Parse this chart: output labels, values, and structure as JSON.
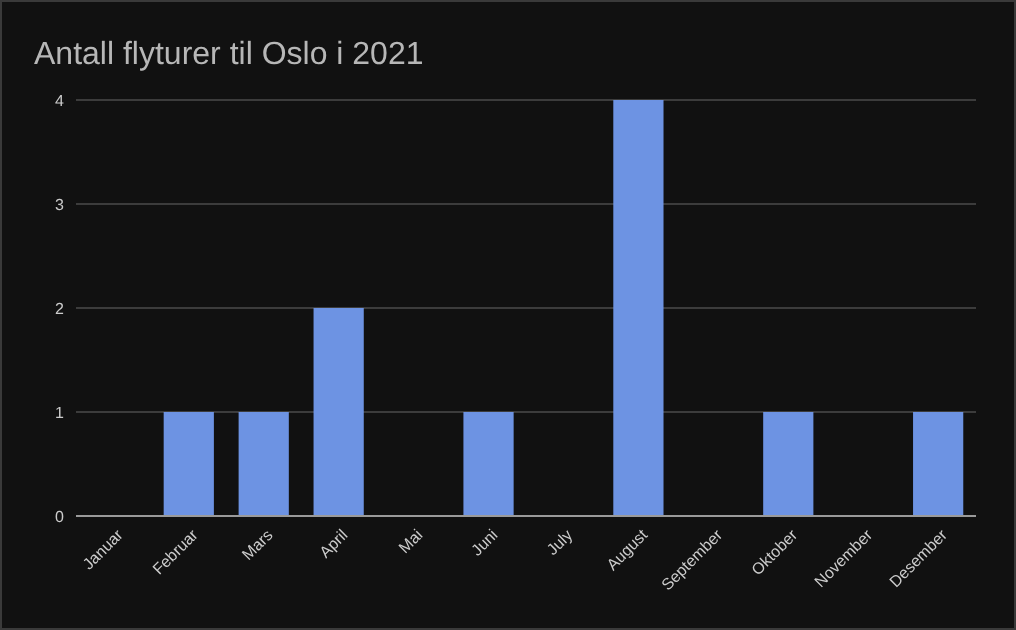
{
  "chart_data": {
    "type": "bar",
    "title": "Antall flyturer til Oslo i 2021",
    "categories": [
      "Januar",
      "Februar",
      "Mars",
      "April",
      "Mai",
      "Juni",
      "July",
      "August",
      "September",
      "Oktober",
      "November",
      "Desember"
    ],
    "values": [
      0,
      1,
      1,
      2,
      0,
      1,
      0,
      4,
      0,
      1,
      0,
      1
    ],
    "color": "#6d93e3",
    "ylim": [
      0,
      4
    ],
    "yticks": [
      0,
      1,
      2,
      3,
      4
    ],
    "grid": "y"
  }
}
